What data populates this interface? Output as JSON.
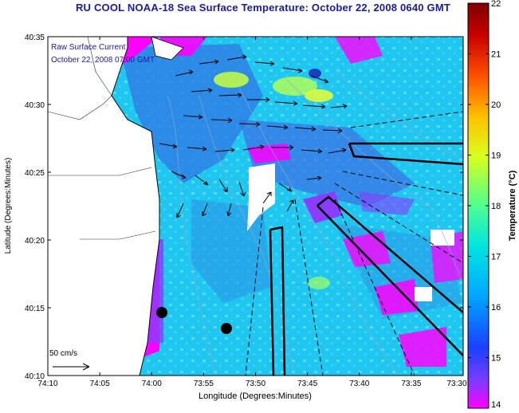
{
  "title": "RU COOL  NOAA-18  Sea Surface Temperature:  October 22, 2008 0640 GMT",
  "overlay": {
    "line1": "Raw Surface Current",
    "line2": "October 22, 2008 07:00 GMT"
  },
  "scale": {
    "label": "50 cm/s"
  },
  "axes": {
    "xlabel": "Longitude (Degrees:Minutes)",
    "ylabel": "Latitude (Degrees:Minutes)",
    "xticks": [
      "74:10",
      "74:05",
      "74:00",
      "73:55",
      "73:50",
      "73:45",
      "73:40",
      "73:35",
      "73:30"
    ],
    "yticks": [
      "40:35",
      "40:30",
      "40:25",
      "40:20",
      "40:15",
      "40:10"
    ]
  },
  "colorbar": {
    "label": "Temperature (°C)",
    "ticks": [
      "22",
      "21",
      "20",
      "19",
      "18",
      "17",
      "16",
      "15",
      "14"
    ],
    "min": 14,
    "max": 22,
    "colors": [
      "#ff00ff",
      "#7a3cff",
      "#1a40ff",
      "#00a8ff",
      "#00e6e0",
      "#50ff90",
      "#d8ff20",
      "#ffc000",
      "#ff5000",
      "#c80000",
      "#800000"
    ]
  },
  "colors": {
    "water_main": "#1fc6f0",
    "water_light": "#4fe0f8",
    "water_dark": "#2a74e0",
    "land": "#ffffff",
    "title_blue": "#1a1aa6",
    "warm_yellow": "#c8ff40"
  }
}
